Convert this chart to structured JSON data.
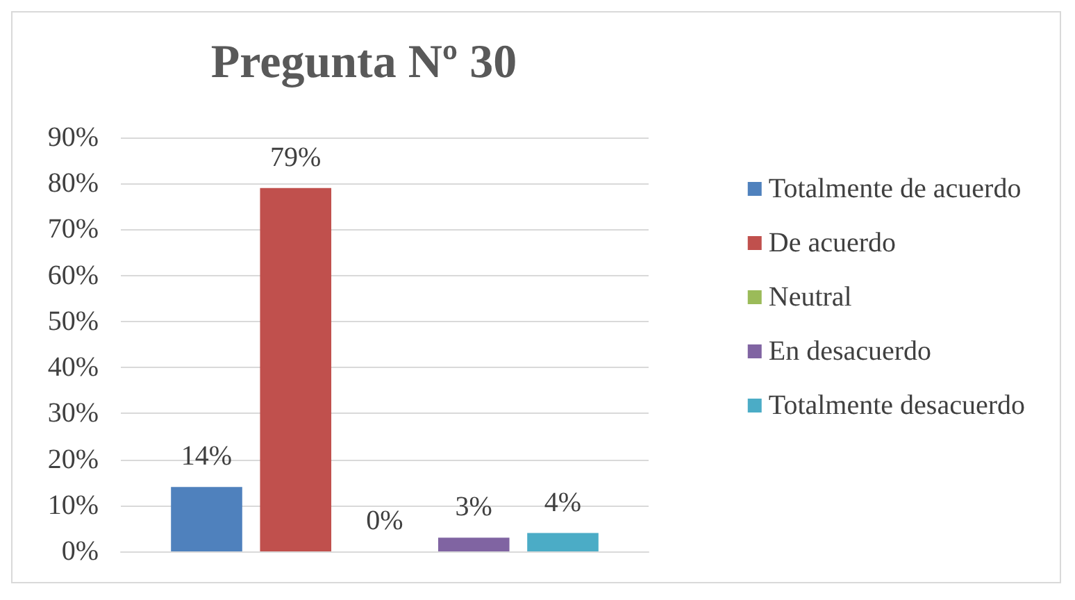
{
  "chart_data": {
    "type": "bar",
    "title": "Pregunta Nº 30",
    "categories": [
      null
    ],
    "series": [
      {
        "name": "Totalmente de acuerdo",
        "color": "#4f81bd",
        "values": [
          14
        ],
        "value_labels": [
          "14%"
        ]
      },
      {
        "name": "De acuerdo",
        "color": "#c0504d",
        "values": [
          79
        ],
        "value_labels": [
          "79%"
        ]
      },
      {
        "name": "Neutral",
        "color": "#9bbb59",
        "values": [
          0
        ],
        "value_labels": [
          "0%"
        ]
      },
      {
        "name": "En desacuerdo",
        "color": "#8064a2",
        "values": [
          3
        ],
        "value_labels": [
          "3%"
        ]
      },
      {
        "name": "Totalmente desacuerdo",
        "color": "#4bacc6",
        "values": [
          4
        ],
        "value_labels": [
          "4%"
        ]
      }
    ],
    "ylim": [
      0,
      90
    ],
    "yticks": [
      {
        "value": 0,
        "label": "0%"
      },
      {
        "value": 10,
        "label": "10%"
      },
      {
        "value": 20,
        "label": "20%"
      },
      {
        "value": 30,
        "label": "30%"
      },
      {
        "value": 40,
        "label": "40%"
      },
      {
        "value": 50,
        "label": "50%"
      },
      {
        "value": 60,
        "label": "60%"
      },
      {
        "value": 70,
        "label": "70%"
      },
      {
        "value": 80,
        "label": "80%"
      },
      {
        "value": 90,
        "label": "90%"
      }
    ],
    "grid": "y",
    "legend": "right"
  }
}
